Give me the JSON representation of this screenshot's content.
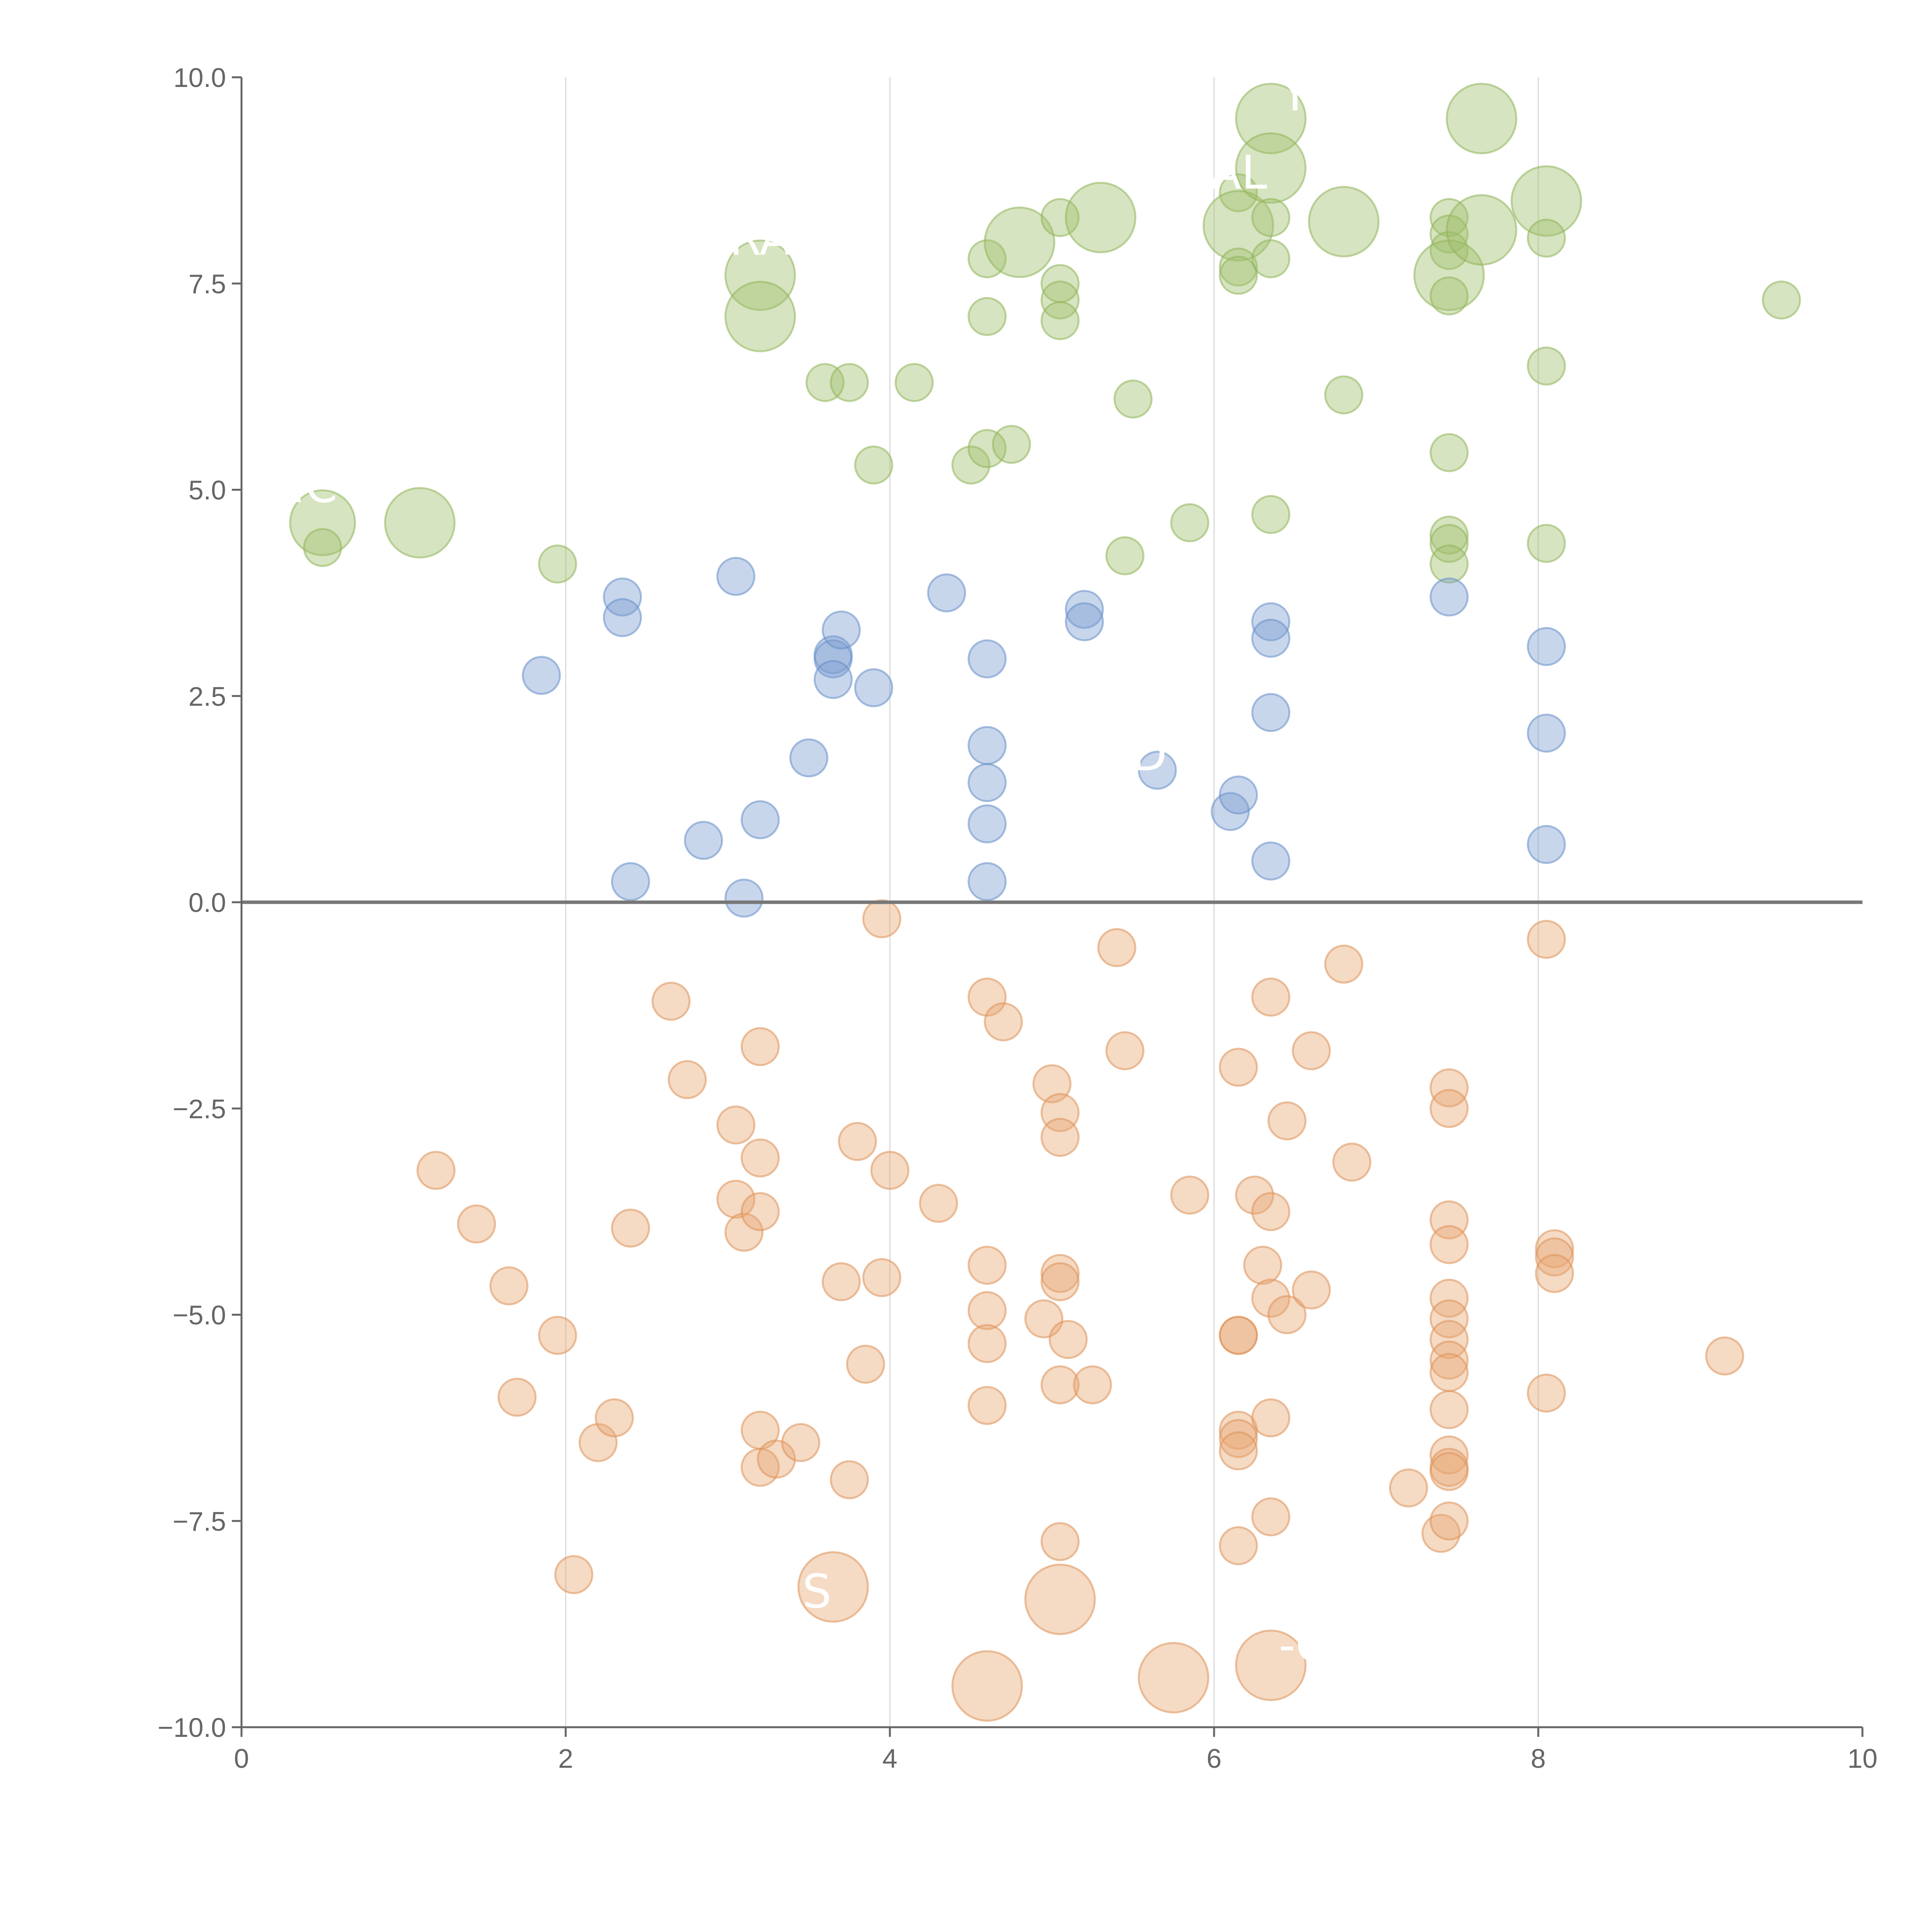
{
  "chart_data": {
    "type": "scatter",
    "title": "",
    "xlabel": "",
    "ylabel": "",
    "xlim": [
      0,
      10
    ],
    "ylim": [
      -10,
      10
    ],
    "x_ticks": [
      "0",
      "2",
      "4",
      "6",
      "8",
      "10"
    ],
    "y_ticks": [
      "−10.0",
      "−7.5",
      "−5.0",
      "−2.5",
      "0.0",
      "2.5",
      "5.0",
      "7.5",
      "10.0"
    ],
    "grid": "vertical",
    "reference_line_y": 0,
    "series": [
      {
        "color": "#9fbf6b",
        "stroke": "#8fb45a",
        "points": [
          {
            "x": 0.5,
            "y": 4.6,
            "s": 1.4
          },
          {
            "x": 0.5,
            "y": 4.3,
            "s": 0.8
          },
          {
            "x": 1.1,
            "y": 4.6,
            "s": 1.5
          },
          {
            "x": 1.95,
            "y": 4.1,
            "s": 0.8
          },
          {
            "x": 3.2,
            "y": 7.6,
            "s": 1.5
          },
          {
            "x": 3.2,
            "y": 7.1,
            "s": 1.5
          },
          {
            "x": 3.6,
            "y": 6.3,
            "s": 0.8
          },
          {
            "x": 3.75,
            "y": 6.3,
            "s": 0.8
          },
          {
            "x": 4.15,
            "y": 6.3,
            "s": 0.8
          },
          {
            "x": 3.9,
            "y": 5.3,
            "s": 0.8
          },
          {
            "x": 4.6,
            "y": 7.8,
            "s": 0.8
          },
          {
            "x": 4.6,
            "y": 7.1,
            "s": 0.8
          },
          {
            "x": 4.8,
            "y": 8.0,
            "s": 1.5
          },
          {
            "x": 4.5,
            "y": 5.3,
            "s": 0.8
          },
          {
            "x": 4.6,
            "y": 5.5,
            "s": 0.8
          },
          {
            "x": 4.75,
            "y": 5.55,
            "s": 0.8
          },
          {
            "x": 5.05,
            "y": 8.3,
            "s": 0.8
          },
          {
            "x": 5.05,
            "y": 7.5,
            "s": 0.8
          },
          {
            "x": 5.05,
            "y": 7.3,
            "s": 0.8
          },
          {
            "x": 5.05,
            "y": 7.05,
            "s": 0.8
          },
          {
            "x": 5.3,
            "y": 8.3,
            "s": 1.5
          },
          {
            "x": 5.5,
            "y": 6.1,
            "s": 0.8
          },
          {
            "x": 5.45,
            "y": 4.2,
            "s": 0.8
          },
          {
            "x": 5.85,
            "y": 4.6,
            "s": 0.8
          },
          {
            "x": 6.15,
            "y": 8.6,
            "s": 0.8
          },
          {
            "x": 6.15,
            "y": 8.2,
            "s": 1.5
          },
          {
            "x": 6.15,
            "y": 7.7,
            "s": 0.8
          },
          {
            "x": 6.15,
            "y": 7.6,
            "s": 0.8
          },
          {
            "x": 6.35,
            "y": 9.5,
            "s": 1.5
          },
          {
            "x": 6.35,
            "y": 8.9,
            "s": 1.5
          },
          {
            "x": 6.35,
            "y": 8.3,
            "s": 0.8
          },
          {
            "x": 6.35,
            "y": 7.8,
            "s": 0.8
          },
          {
            "x": 6.35,
            "y": 4.7,
            "s": 0.8
          },
          {
            "x": 6.8,
            "y": 8.25,
            "s": 1.5
          },
          {
            "x": 6.8,
            "y": 6.15,
            "s": 0.8
          },
          {
            "x": 7.45,
            "y": 8.3,
            "s": 0.8
          },
          {
            "x": 7.45,
            "y": 8.1,
            "s": 0.8
          },
          {
            "x": 7.45,
            "y": 7.9,
            "s": 0.8
          },
          {
            "x": 7.45,
            "y": 7.6,
            "s": 1.5
          },
          {
            "x": 7.45,
            "y": 7.35,
            "s": 0.8
          },
          {
            "x": 7.45,
            "y": 5.45,
            "s": 0.8
          },
          {
            "x": 7.45,
            "y": 4.45,
            "s": 0.8
          },
          {
            "x": 7.45,
            "y": 4.35,
            "s": 0.8
          },
          {
            "x": 7.45,
            "y": 4.1,
            "s": 0.8
          },
          {
            "x": 7.65,
            "y": 9.5,
            "s": 1.5
          },
          {
            "x": 7.65,
            "y": 8.15,
            "s": 1.5
          },
          {
            "x": 8.05,
            "y": 8.5,
            "s": 1.5
          },
          {
            "x": 8.05,
            "y": 8.05,
            "s": 0.8
          },
          {
            "x": 8.05,
            "y": 6.5,
            "s": 0.8
          },
          {
            "x": 8.05,
            "y": 4.35,
            "s": 0.8
          },
          {
            "x": 9.5,
            "y": 7.3,
            "s": 0.8
          }
        ]
      },
      {
        "color": "#7b9ed1",
        "stroke": "#6690c8",
        "points": [
          {
            "x": 1.85,
            "y": 2.75,
            "s": 0.8
          },
          {
            "x": 2.35,
            "y": 3.7,
            "s": 0.8
          },
          {
            "x": 2.35,
            "y": 3.45,
            "s": 0.8
          },
          {
            "x": 2.4,
            "y": 0.25,
            "s": 0.8
          },
          {
            "x": 2.85,
            "y": 0.75,
            "s": 0.8
          },
          {
            "x": 3.05,
            "y": 3.95,
            "s": 0.8
          },
          {
            "x": 3.1,
            "y": 0.05,
            "s": 0.8
          },
          {
            "x": 3.2,
            "y": 1.0,
            "s": 0.8
          },
          {
            "x": 3.5,
            "y": 1.75,
            "s": 0.8
          },
          {
            "x": 3.65,
            "y": 3.0,
            "s": 0.8
          },
          {
            "x": 3.65,
            "y": 2.95,
            "s": 0.8
          },
          {
            "x": 3.65,
            "y": 2.7,
            "s": 0.8
          },
          {
            "x": 3.7,
            "y": 3.3,
            "s": 0.8
          },
          {
            "x": 3.9,
            "y": 2.6,
            "s": 0.8
          },
          {
            "x": 4.35,
            "y": 3.75,
            "s": 0.8
          },
          {
            "x": 4.6,
            "y": 2.95,
            "s": 0.8
          },
          {
            "x": 4.6,
            "y": 1.9,
            "s": 0.8
          },
          {
            "x": 4.6,
            "y": 1.45,
            "s": 0.8
          },
          {
            "x": 4.6,
            "y": 0.95,
            "s": 0.8
          },
          {
            "x": 4.6,
            "y": 0.25,
            "s": 0.8
          },
          {
            "x": 5.2,
            "y": 3.55,
            "s": 0.8
          },
          {
            "x": 5.2,
            "y": 3.4,
            "s": 0.8
          },
          {
            "x": 5.65,
            "y": 1.6,
            "s": 0.8
          },
          {
            "x": 6.1,
            "y": 1.1,
            "s": 0.8
          },
          {
            "x": 6.15,
            "y": 1.3,
            "s": 0.8
          },
          {
            "x": 6.35,
            "y": 3.4,
            "s": 0.8
          },
          {
            "x": 6.35,
            "y": 3.2,
            "s": 0.8
          },
          {
            "x": 6.35,
            "y": 2.3,
            "s": 0.8
          },
          {
            "x": 6.35,
            "y": 0.5,
            "s": 0.8
          },
          {
            "x": 7.45,
            "y": 3.7,
            "s": 0.8
          },
          {
            "x": 8.05,
            "y": 3.1,
            "s": 0.8
          },
          {
            "x": 8.05,
            "y": 2.05,
            "s": 0.8
          },
          {
            "x": 8.05,
            "y": 0.7,
            "s": 0.8
          }
        ]
      },
      {
        "color": "#e8a672",
        "stroke": "#dd9258",
        "points": [
          {
            "x": 1.2,
            "y": -3.25,
            "s": 0.8
          },
          {
            "x": 1.45,
            "y": -3.9,
            "s": 0.8
          },
          {
            "x": 1.65,
            "y": -4.65,
            "s": 0.8
          },
          {
            "x": 1.7,
            "y": -6.0,
            "s": 0.8
          },
          {
            "x": 1.95,
            "y": -5.25,
            "s": 0.8
          },
          {
            "x": 2.05,
            "y": -8.15,
            "s": 0.8
          },
          {
            "x": 2.2,
            "y": -6.55,
            "s": 0.8
          },
          {
            "x": 2.3,
            "y": -6.25,
            "s": 0.8
          },
          {
            "x": 2.4,
            "y": -3.95,
            "s": 0.8
          },
          {
            "x": 2.65,
            "y": -1.2,
            "s": 0.8
          },
          {
            "x": 2.75,
            "y": -2.15,
            "s": 0.8
          },
          {
            "x": 3.05,
            "y": -2.7,
            "s": 0.8
          },
          {
            "x": 3.05,
            "y": -3.6,
            "s": 0.8
          },
          {
            "x": 3.1,
            "y": -4.0,
            "s": 0.8
          },
          {
            "x": 3.2,
            "y": -1.75,
            "s": 0.8
          },
          {
            "x": 3.2,
            "y": -3.1,
            "s": 0.8
          },
          {
            "x": 3.2,
            "y": -3.75,
            "s": 0.8
          },
          {
            "x": 3.2,
            "y": -6.4,
            "s": 0.8
          },
          {
            "x": 3.2,
            "y": -6.85,
            "s": 0.8
          },
          {
            "x": 3.3,
            "y": -6.75,
            "s": 0.8
          },
          {
            "x": 3.45,
            "y": -6.55,
            "s": 0.8
          },
          {
            "x": 3.65,
            "y": -8.3,
            "s": 1.5
          },
          {
            "x": 3.7,
            "y": -4.6,
            "s": 0.8
          },
          {
            "x": 3.75,
            "y": -7.0,
            "s": 0.8
          },
          {
            "x": 3.8,
            "y": -2.9,
            "s": 0.8
          },
          {
            "x": 3.85,
            "y": -5.6,
            "s": 0.8
          },
          {
            "x": 3.95,
            "y": -0.2,
            "s": 0.8
          },
          {
            "x": 3.95,
            "y": -4.55,
            "s": 0.8
          },
          {
            "x": 4.0,
            "y": -3.25,
            "s": 0.8
          },
          {
            "x": 4.3,
            "y": -3.65,
            "s": 0.8
          },
          {
            "x": 4.6,
            "y": -1.15,
            "s": 0.8
          },
          {
            "x": 4.6,
            "y": -4.4,
            "s": 0.8
          },
          {
            "x": 4.6,
            "y": -4.95,
            "s": 0.8
          },
          {
            "x": 4.6,
            "y": -5.35,
            "s": 0.8
          },
          {
            "x": 4.6,
            "y": -6.1,
            "s": 0.8
          },
          {
            "x": 4.6,
            "y": -9.5,
            "s": 1.5
          },
          {
            "x": 4.7,
            "y": -1.45,
            "s": 0.8
          },
          {
            "x": 4.95,
            "y": -5.05,
            "s": 0.8
          },
          {
            "x": 5.0,
            "y": -2.2,
            "s": 0.8
          },
          {
            "x": 5.05,
            "y": -2.55,
            "s": 0.8
          },
          {
            "x": 5.05,
            "y": -2.85,
            "s": 0.8
          },
          {
            "x": 5.05,
            "y": -4.5,
            "s": 0.8
          },
          {
            "x": 5.05,
            "y": -4.6,
            "s": 0.8
          },
          {
            "x": 5.05,
            "y": -5.85,
            "s": 0.8
          },
          {
            "x": 5.05,
            "y": -7.75,
            "s": 0.8
          },
          {
            "x": 5.05,
            "y": -8.45,
            "s": 1.5
          },
          {
            "x": 5.1,
            "y": -5.3,
            "s": 0.8
          },
          {
            "x": 5.25,
            "y": -5.85,
            "s": 0.8
          },
          {
            "x": 5.4,
            "y": -0.55,
            "s": 0.8
          },
          {
            "x": 5.45,
            "y": -1.8,
            "s": 0.8
          },
          {
            "x": 5.75,
            "y": -9.4,
            "s": 1.5
          },
          {
            "x": 5.85,
            "y": -3.55,
            "s": 0.8
          },
          {
            "x": 6.15,
            "y": -2.0,
            "s": 0.8
          },
          {
            "x": 6.15,
            "y": -5.25,
            "s": 0.8
          },
          {
            "x": 6.15,
            "y": -5.25,
            "s": 0.8
          },
          {
            "x": 6.15,
            "y": -6.4,
            "s": 0.8
          },
          {
            "x": 6.15,
            "y": -6.5,
            "s": 0.8
          },
          {
            "x": 6.15,
            "y": -6.65,
            "s": 0.8
          },
          {
            "x": 6.15,
            "y": -7.8,
            "s": 0.8
          },
          {
            "x": 6.25,
            "y": -3.55,
            "s": 0.8
          },
          {
            "x": 6.3,
            "y": -4.4,
            "s": 0.8
          },
          {
            "x": 6.35,
            "y": -1.15,
            "s": 0.8
          },
          {
            "x": 6.35,
            "y": -3.75,
            "s": 0.8
          },
          {
            "x": 6.35,
            "y": -4.8,
            "s": 0.8
          },
          {
            "x": 6.35,
            "y": -6.25,
            "s": 0.8
          },
          {
            "x": 6.35,
            "y": -7.45,
            "s": 0.8
          },
          {
            "x": 6.35,
            "y": -9.25,
            "s": 1.5
          },
          {
            "x": 6.45,
            "y": -2.65,
            "s": 0.8
          },
          {
            "x": 6.45,
            "y": -5.0,
            "s": 0.8
          },
          {
            "x": 6.6,
            "y": -4.7,
            "s": 0.8
          },
          {
            "x": 6.6,
            "y": -1.8,
            "s": 0.8
          },
          {
            "x": 6.8,
            "y": -0.75,
            "s": 0.8
          },
          {
            "x": 6.85,
            "y": -3.15,
            "s": 0.8
          },
          {
            "x": 7.2,
            "y": -7.1,
            "s": 0.8
          },
          {
            "x": 7.4,
            "y": -7.65,
            "s": 0.8
          },
          {
            "x": 7.45,
            "y": -2.25,
            "s": 0.8
          },
          {
            "x": 7.45,
            "y": -2.5,
            "s": 0.8
          },
          {
            "x": 7.45,
            "y": -3.85,
            "s": 0.8
          },
          {
            "x": 7.45,
            "y": -4.15,
            "s": 0.8
          },
          {
            "x": 7.45,
            "y": -4.8,
            "s": 0.8
          },
          {
            "x": 7.45,
            "y": -5.05,
            "s": 0.8
          },
          {
            "x": 7.45,
            "y": -5.3,
            "s": 0.8
          },
          {
            "x": 7.45,
            "y": -5.55,
            "s": 0.8
          },
          {
            "x": 7.45,
            "y": -5.7,
            "s": 0.8
          },
          {
            "x": 7.45,
            "y": -6.15,
            "s": 0.8
          },
          {
            "x": 7.45,
            "y": -6.7,
            "s": 0.8
          },
          {
            "x": 7.45,
            "y": -6.85,
            "s": 0.8
          },
          {
            "x": 7.45,
            "y": -6.9,
            "s": 0.8
          },
          {
            "x": 7.45,
            "y": -7.5,
            "s": 0.8
          },
          {
            "x": 8.05,
            "y": -0.45,
            "s": 0.8
          },
          {
            "x": 8.05,
            "y": -5.95,
            "s": 0.8
          },
          {
            "x": 8.1,
            "y": -4.2,
            "s": 0.8
          },
          {
            "x": 8.1,
            "y": -4.3,
            "s": 0.8
          },
          {
            "x": 8.1,
            "y": -4.5,
            "s": 0.8
          },
          {
            "x": 9.15,
            "y": -5.5,
            "s": 0.8
          }
        ]
      }
    ],
    "annotations": [
      {
        "text": "IC",
        "x": 0.45,
        "y": 4.85
      },
      {
        "text": "RA",
        "x": 3.2,
        "y": 7.85
      },
      {
        "text": "Y",
        "x": 6.5,
        "y": 9.6
      },
      {
        "text": "AL",
        "x": 6.15,
        "y": 8.65
      },
      {
        "text": "D",
        "x": 5.6,
        "y": 1.6
      },
      {
        "text": "S",
        "x": 3.55,
        "y": -8.55
      },
      {
        "text": "-C",
        "x": 6.55,
        "y": -9.2
      }
    ]
  }
}
